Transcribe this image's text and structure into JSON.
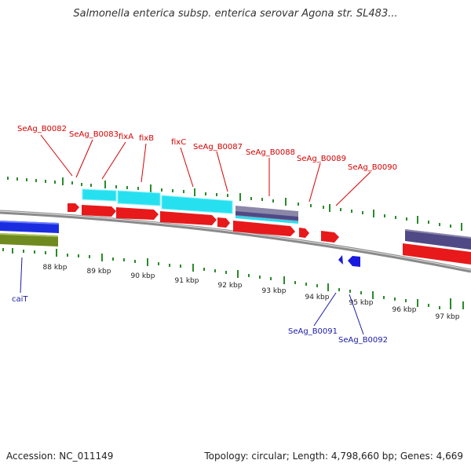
{
  "title": "Salmonella enterica subsp. enterica serovar Agona str. SL483...",
  "footer": {
    "accession": "Accession: NC_011149",
    "summary": "Topology: circular; Length: 4,798,660 bp; Genes: 4,669"
  },
  "colors": {
    "forward_label": "#d40000",
    "reverse_label": "#1a1aa6",
    "cds_forward": "#e8191b",
    "cds_reverse": "#1a1adf",
    "cyan_feature": "#26e0f0",
    "slate_feature": "#4f4a86",
    "olive_feature": "#6f8a1e",
    "blue_feature": "#1a2ee0",
    "tick": "#2a8a2a",
    "backbone": "#8a8a8a"
  },
  "forward_labels": [
    {
      "text": "SeAg_B0082"
    },
    {
      "text": "SeAg_B0083"
    },
    {
      "text": "fixA"
    },
    {
      "text": "fixB"
    },
    {
      "text": "fixC"
    },
    {
      "text": "SeAg_B0087"
    },
    {
      "text": "SeAg_B0088"
    },
    {
      "text": "SeAg_B0089"
    },
    {
      "text": "SeAg_B0090"
    }
  ],
  "reverse_labels": [
    {
      "text": "caiT"
    },
    {
      "text": "SeAg_B0091"
    },
    {
      "text": "SeAg_B0092"
    }
  ],
  "kbp_ticks": [
    {
      "text": "88 kbp"
    },
    {
      "text": "89 kbp"
    },
    {
      "text": "90 kbp"
    },
    {
      "text": "91 kbp"
    },
    {
      "text": "92 kbp"
    },
    {
      "text": "93 kbp"
    },
    {
      "text": "94 kbp"
    },
    {
      "text": "95 kbp"
    },
    {
      "text": "96 kbp"
    },
    {
      "text": "97 kbp"
    }
  ]
}
